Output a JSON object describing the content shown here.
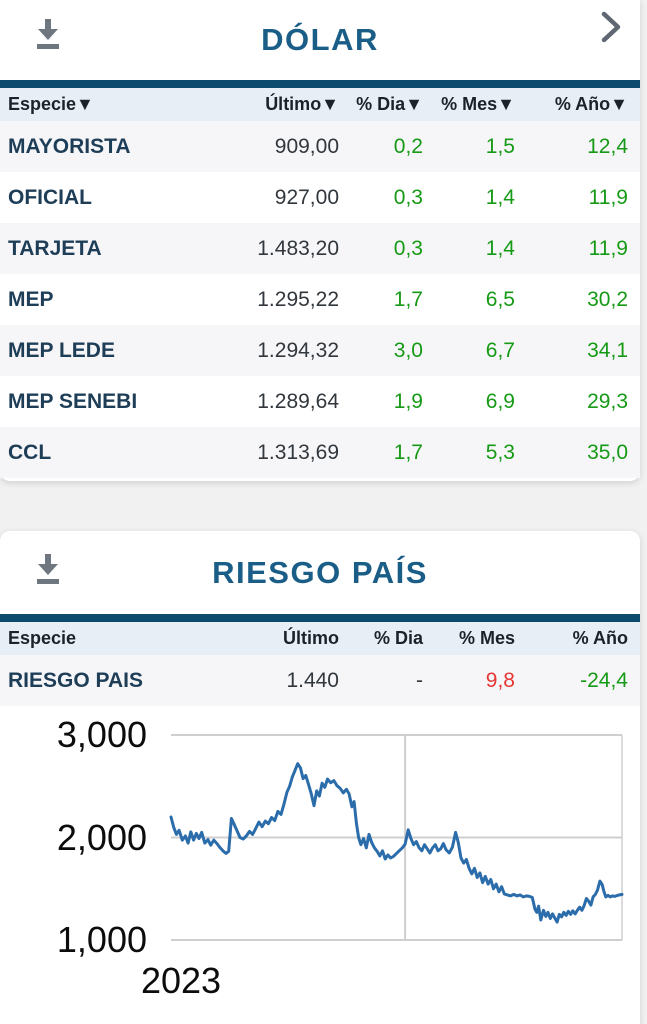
{
  "colors": {
    "navy_bar": "#0d4b6e",
    "title": "#1a5e87",
    "species": "#1e3e58",
    "value": "#31373d",
    "green": "#169a16",
    "red": "#e63633",
    "header_bg": "#e8eef5",
    "alt_row": "#f6f6f8",
    "chart_line": "#2b6cab",
    "gridline": "#cfcfcf",
    "icon_gray": "#6e7780"
  },
  "dolar_card": {
    "title": "DÓLAR",
    "icons": {
      "download": "download-icon",
      "chevron": "chevron-right-icon"
    },
    "table": {
      "columns": [
        "especie",
        "ultimo",
        "dia",
        "mes",
        "ano"
      ],
      "headers": [
        "Especie▼",
        "Último▼",
        "% Dia▼",
        "% Mes▼",
        "% Año▼"
      ],
      "rows": [
        {
          "especie": "MAYORISTA",
          "values": [
            [
              "909,00",
              "dark"
            ],
            [
              "0,2",
              "green"
            ],
            [
              "1,5",
              "green"
            ],
            [
              "12,4",
              "green"
            ]
          ]
        },
        {
          "especie": "OFICIAL",
          "values": [
            [
              "927,00",
              "dark"
            ],
            [
              "0,3",
              "green"
            ],
            [
              "1,4",
              "green"
            ],
            [
              "11,9",
              "green"
            ]
          ]
        },
        {
          "especie": "TARJETA",
          "values": [
            [
              "1.483,20",
              "dark"
            ],
            [
              "0,3",
              "green"
            ],
            [
              "1,4",
              "green"
            ],
            [
              "11,9",
              "green"
            ]
          ]
        },
        {
          "especie": "MEP",
          "values": [
            [
              "1.295,22",
              "dark"
            ],
            [
              "1,7",
              "green"
            ],
            [
              "6,5",
              "green"
            ],
            [
              "30,2",
              "green"
            ]
          ]
        },
        {
          "especie": "MEP LEDE",
          "values": [
            [
              "1.294,32",
              "dark"
            ],
            [
              "3,0",
              "green"
            ],
            [
              "6,7",
              "green"
            ],
            [
              "34,1",
              "green"
            ]
          ]
        },
        {
          "especie": "MEP SENEBI",
          "values": [
            [
              "1.289,64",
              "dark"
            ],
            [
              "1,9",
              "green"
            ],
            [
              "6,9",
              "green"
            ],
            [
              "29,3",
              "green"
            ]
          ]
        },
        {
          "especie": "CCL",
          "values": [
            [
              "1.313,69",
              "dark"
            ],
            [
              "1,7",
              "green"
            ],
            [
              "5,3",
              "green"
            ],
            [
              "35,0",
              "green"
            ]
          ]
        }
      ]
    }
  },
  "riesgo_card": {
    "title": "RIESGO PAÍS",
    "icons": {
      "download": "download-icon"
    },
    "table": {
      "columns": [
        "especie",
        "ultimo",
        "dia",
        "mes",
        "ano"
      ],
      "headers": [
        "Especie",
        "Último",
        "% Dia",
        "% Mes",
        "% Año"
      ],
      "rows": [
        {
          "especie": "RIESGO PAIS",
          "values": [
            [
              "1.440",
              "dark"
            ],
            [
              "-",
              "dark"
            ],
            [
              "9,8",
              "red"
            ],
            [
              "-24,4",
              "green"
            ]
          ]
        }
      ]
    },
    "chart_data": {
      "type": "line",
      "series_name": "RIESGO PAIS",
      "last_value": 1440,
      "ylim": [
        1000,
        3000
      ],
      "yticks": [
        {
          "label": "3,000",
          "value": 3000
        },
        {
          "label": "2,000",
          "value": 2000
        },
        {
          "label": "1,000",
          "value": 1000
        }
      ],
      "xticks": [
        {
          "label": "2023",
          "fraction": 0.02
        }
      ],
      "x_gridline_fraction": 0.519,
      "grid": true,
      "line_color": "#2b6cab",
      "x_unit": "fraction_of_plot_width",
      "points": [
        [
          0.0,
          2200
        ],
        [
          0.006,
          2100
        ],
        [
          0.012,
          2030
        ],
        [
          0.018,
          2070
        ],
        [
          0.025,
          1975
        ],
        [
          0.032,
          2015
        ],
        [
          0.038,
          1945
        ],
        [
          0.044,
          2055
        ],
        [
          0.05,
          1975
        ],
        [
          0.056,
          2040
        ],
        [
          0.062,
          1990
        ],
        [
          0.068,
          2050
        ],
        [
          0.075,
          1945
        ],
        [
          0.082,
          1980
        ],
        [
          0.088,
          1925
        ],
        [
          0.095,
          1975
        ],
        [
          0.102,
          1940
        ],
        [
          0.108,
          1905
        ],
        [
          0.115,
          1870
        ],
        [
          0.122,
          1845
        ],
        [
          0.128,
          1865
        ],
        [
          0.134,
          2185
        ],
        [
          0.14,
          2130
        ],
        [
          0.147,
          2060
        ],
        [
          0.153,
          2000
        ],
        [
          0.16,
          1985
        ],
        [
          0.167,
          2015
        ],
        [
          0.174,
          2060
        ],
        [
          0.181,
          2030
        ],
        [
          0.188,
          2090
        ],
        [
          0.195,
          2150
        ],
        [
          0.202,
          2105
        ],
        [
          0.209,
          2160
        ],
        [
          0.216,
          2135
        ],
        [
          0.223,
          2195
        ],
        [
          0.23,
          2165
        ],
        [
          0.237,
          2255
        ],
        [
          0.244,
          2225
        ],
        [
          0.25,
          2320
        ],
        [
          0.257,
          2440
        ],
        [
          0.263,
          2500
        ],
        [
          0.269,
          2590
        ],
        [
          0.275,
          2655
        ],
        [
          0.281,
          2720
        ],
        [
          0.287,
          2680
        ],
        [
          0.293,
          2575
        ],
        [
          0.299,
          2605
        ],
        [
          0.305,
          2515
        ],
        [
          0.311,
          2425
        ],
        [
          0.317,
          2310
        ],
        [
          0.323,
          2455
        ],
        [
          0.329,
          2405
        ],
        [
          0.335,
          2530
        ],
        [
          0.341,
          2490
        ],
        [
          0.347,
          2570
        ],
        [
          0.354,
          2535
        ],
        [
          0.361,
          2555
        ],
        [
          0.368,
          2505
        ],
        [
          0.375,
          2480
        ],
        [
          0.382,
          2435
        ],
        [
          0.389,
          2470
        ],
        [
          0.395,
          2425
        ],
        [
          0.401,
          2300
        ],
        [
          0.406,
          2350
        ],
        [
          0.411,
          2140
        ],
        [
          0.416,
          2000
        ],
        [
          0.421,
          1930
        ],
        [
          0.427,
          1990
        ],
        [
          0.433,
          1900
        ],
        [
          0.439,
          2030
        ],
        [
          0.445,
          1950
        ],
        [
          0.451,
          1900
        ],
        [
          0.457,
          1865
        ],
        [
          0.463,
          1820
        ],
        [
          0.469,
          1870
        ],
        [
          0.475,
          1790
        ],
        [
          0.481,
          1830
        ],
        [
          0.487,
          1800
        ],
        [
          0.493,
          1815
        ],
        [
          0.499,
          1840
        ],
        [
          0.506,
          1870
        ],
        [
          0.513,
          1900
        ],
        [
          0.519,
          1935
        ],
        [
          0.526,
          2075
        ],
        [
          0.532,
          1990
        ],
        [
          0.538,
          1930
        ],
        [
          0.544,
          1960
        ],
        [
          0.55,
          1900
        ],
        [
          0.556,
          1870
        ],
        [
          0.562,
          1930
        ],
        [
          0.568,
          1890
        ],
        [
          0.574,
          1850
        ],
        [
          0.58,
          1900
        ],
        [
          0.586,
          1930
        ],
        [
          0.592,
          1870
        ],
        [
          0.598,
          1890
        ],
        [
          0.604,
          1940
        ],
        [
          0.61,
          1880
        ],
        [
          0.617,
          1850
        ],
        [
          0.624,
          1905
        ],
        [
          0.631,
          2050
        ],
        [
          0.637,
          1950
        ],
        [
          0.643,
          1800
        ],
        [
          0.649,
          1750
        ],
        [
          0.655,
          1785
        ],
        [
          0.661,
          1700
        ],
        [
          0.667,
          1645
        ],
        [
          0.673,
          1700
        ],
        [
          0.679,
          1610
        ],
        [
          0.685,
          1655
        ],
        [
          0.691,
          1560
        ],
        [
          0.697,
          1620
        ],
        [
          0.703,
          1545
        ],
        [
          0.709,
          1590
        ],
        [
          0.715,
          1500
        ],
        [
          0.721,
          1545
        ],
        [
          0.727,
          1470
        ],
        [
          0.733,
          1520
        ],
        [
          0.739,
          1450
        ],
        [
          0.746,
          1440
        ],
        [
          0.753,
          1430
        ],
        [
          0.76,
          1445
        ],
        [
          0.767,
          1430
        ],
        [
          0.774,
          1440
        ],
        [
          0.781,
          1420
        ],
        [
          0.788,
          1430
        ],
        [
          0.795,
          1425
        ],
        [
          0.801,
          1415
        ],
        [
          0.807,
          1300
        ],
        [
          0.811,
          1270
        ],
        [
          0.815,
          1330
        ],
        [
          0.82,
          1195
        ],
        [
          0.826,
          1290
        ],
        [
          0.831,
          1230
        ],
        [
          0.836,
          1270
        ],
        [
          0.841,
          1210
        ],
        [
          0.846,
          1255
        ],
        [
          0.851,
          1215
        ],
        [
          0.856,
          1175
        ],
        [
          0.861,
          1250
        ],
        [
          0.866,
          1225
        ],
        [
          0.871,
          1270
        ],
        [
          0.876,
          1240
        ],
        [
          0.881,
          1280
        ],
        [
          0.886,
          1250
        ],
        [
          0.891,
          1285
        ],
        [
          0.896,
          1255
        ],
        [
          0.901,
          1290
        ],
        [
          0.906,
          1320
        ],
        [
          0.911,
          1290
        ],
        [
          0.916,
          1335
        ],
        [
          0.921,
          1405
        ],
        [
          0.926,
          1380
        ],
        [
          0.931,
          1340
        ],
        [
          0.936,
          1420
        ],
        [
          0.941,
          1445
        ],
        [
          0.946,
          1490
        ],
        [
          0.951,
          1575
        ],
        [
          0.956,
          1540
        ],
        [
          0.96,
          1470
        ],
        [
          0.964,
          1420
        ],
        [
          0.969,
          1435
        ],
        [
          0.974,
          1420
        ],
        [
          0.979,
          1430
        ],
        [
          0.984,
          1425
        ],
        [
          0.99,
          1435
        ],
        [
          1.0,
          1445
        ]
      ]
    }
  }
}
